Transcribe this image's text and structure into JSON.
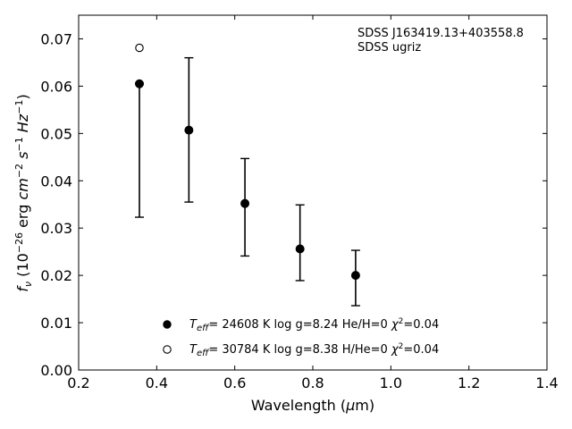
{
  "chart_data": {
    "type": "scatter",
    "title": "",
    "xlabel": "Wavelength (μm)",
    "ylabel": "f_ν (10^-26 erg cm^-2 s^-1 Hz^-1)",
    "xlim": [
      0.2,
      1.4
    ],
    "ylim": [
      0.0,
      0.075
    ],
    "x_ticks": [
      0.2,
      0.4,
      0.6,
      0.8,
      1.0,
      1.2,
      1.4
    ],
    "x_tick_labels": [
      "0.2",
      "0.4",
      "0.6",
      "0.8",
      "1.0",
      "1.2",
      "1.4"
    ],
    "y_ticks": [
      0.0,
      0.01,
      0.02,
      0.03,
      0.04,
      0.05,
      0.06,
      0.07
    ],
    "y_tick_labels": [
      "0.00",
      "0.01",
      "0.02",
      "0.03",
      "0.04",
      "0.05",
      "0.06",
      "0.07"
    ],
    "grid": false,
    "tick_direction": "in",
    "annotations": [
      "SDSS J163419.13+403558.8",
      "SDSS ugriz"
    ],
    "observed": {
      "x": [
        0.3557,
        0.4825,
        0.6261,
        0.7672,
        0.9097
      ],
      "y": [
        0.0605,
        0.0507,
        0.0352,
        0.0256,
        0.02
      ],
      "err_low": [
        0.0323,
        0.0355,
        0.0241,
        0.0189,
        0.0136
      ],
      "err_high": [
        0.0605,
        0.066,
        0.0447,
        0.0349,
        0.0253
      ]
    },
    "series": [
      {
        "name": "T_eff= 24608 K  log g=8.24  He/H=0  χ²=0.04",
        "marker": "filled-circle",
        "color": "#000000",
        "x": [],
        "y": []
      },
      {
        "name": "T_eff= 30784 K  log g=8.38  H/He=0  χ²=0.04",
        "marker": "open-circle",
        "color": "#000000",
        "x": [
          0.3557
        ],
        "y": [
          0.0681
        ]
      }
    ],
    "legend_position": "bottom-center",
    "legend": [
      {
        "marker": "filled-circle",
        "teff_value": "= 24608 K",
        "logg": "log g=8.24",
        "comp": "He/H=0",
        "chi_value": "=0.04"
      },
      {
        "marker": "open-circle",
        "teff_value": "= 30784 K",
        "logg": "log g=8.38",
        "comp": "H/He=0",
        "chi_value": "=0.04"
      }
    ]
  }
}
